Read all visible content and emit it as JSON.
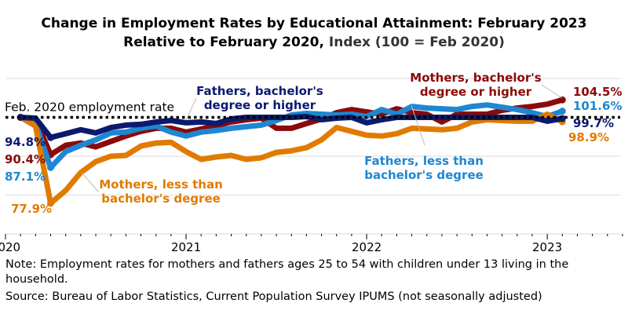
{
  "chart_data": {
    "type": "line",
    "title_line1": "Change in Employment Rates by Educational Attainment: February 2023",
    "title_line2_a": "Relative to February 2020,",
    "title_line2_b": "Index (100 = Feb 2020)",
    "xlabel": "",
    "ylabel": "",
    "ylim": [
      70,
      110
    ],
    "grid": true,
    "x_start": "2020-02",
    "x_end": "2023-02",
    "x_ticks": [
      "2020",
      "2021",
      "2022",
      "2023"
    ],
    "reference_line": {
      "value": 100,
      "label": "Feb. 2020 employment rate"
    },
    "series": [
      {
        "name": "Mothers, bachelor's degree or higher",
        "name_line1": "Mothers, bachelor's",
        "name_line2": "degree or higher",
        "color": "#8b0a0a",
        "trough_label": "90.4%",
        "end_label": "104.5%",
        "values": [
          100,
          99.5,
          90.4,
          92.8,
          93.4,
          92.4,
          93.8,
          95.2,
          96.4,
          97.2,
          97.2,
          96.2,
          97,
          97.8,
          98.8,
          99.4,
          99.8,
          97.2,
          97.2,
          98.4,
          99.6,
          101.2,
          102,
          101.4,
          100.8,
          102.2,
          101.2,
          100.8,
          98.8,
          100.8,
          100.8,
          100.8,
          101.8,
          102.4,
          102.8,
          103.4,
          104.5
        ]
      },
      {
        "name": "Fathers, less than bachelor's degree",
        "name_line1": "Fathers, less than",
        "name_line2": "bachelor's degree",
        "color": "#1f86d1",
        "trough_label": "87.1%",
        "end_label": "101.6%",
        "values": [
          100,
          98.4,
          87.1,
          91.2,
          92.8,
          94.2,
          96,
          96.2,
          97.2,
          97.8,
          96.2,
          95.2,
          96.2,
          96.6,
          97.2,
          97.6,
          98,
          99.2,
          100.6,
          101,
          100.8,
          100.6,
          100.8,
          100.2,
          102,
          100.8,
          102.8,
          102.4,
          102.2,
          102,
          102.8,
          103.2,
          102.6,
          102,
          101.2,
          100.2,
          101.6
        ]
      },
      {
        "name": "Mothers, less than bachelor's degree",
        "name_line1": "Mothers, less than",
        "name_line2": "bachelor's degree",
        "color": "#e07b00",
        "trough_label": "77.9%",
        "end_label": "98.9%",
        "values": [
          100,
          97.8,
          77.9,
          81.2,
          85.8,
          88.6,
          90,
          90.2,
          92.6,
          93.4,
          93.6,
          91.2,
          89.2,
          89.8,
          90.2,
          89.2,
          89.6,
          91,
          91.4,
          92.2,
          94.2,
          97.4,
          96.4,
          95.4,
          95.2,
          95.8,
          97.2,
          97,
          96.8,
          97.2,
          98.8,
          99.4,
          99.2,
          99,
          99,
          100.8,
          98.9
        ]
      },
      {
        "name": "Fathers, bachelor's degree or higher",
        "name_line1": "Fathers, bachelor's",
        "name_line2": "degree or higher",
        "color": "#0b1a6e",
        "trough_label": "94.8%",
        "end_label": "99.7%",
        "values": [
          100,
          99.8,
          94.8,
          95.8,
          96.8,
          96,
          97.4,
          98,
          98.2,
          98.8,
          99.2,
          98.6,
          98.8,
          98.4,
          99.6,
          100,
          100,
          100,
          100,
          100.2,
          99.4,
          99.8,
          100,
          98.6,
          99.4,
          100,
          100,
          100,
          100,
          100,
          100,
          100,
          100,
          100,
          100,
          99,
          99.7
        ]
      }
    ]
  },
  "note": "Note: Employment rates for mothers and fathers ages 25 to 54 with children under 13 living in the",
  "note_line2": "household.",
  "source": "Source: Bureau of Labor Statistics, Current Population Survey IPUMS (not seasonally adjusted)"
}
